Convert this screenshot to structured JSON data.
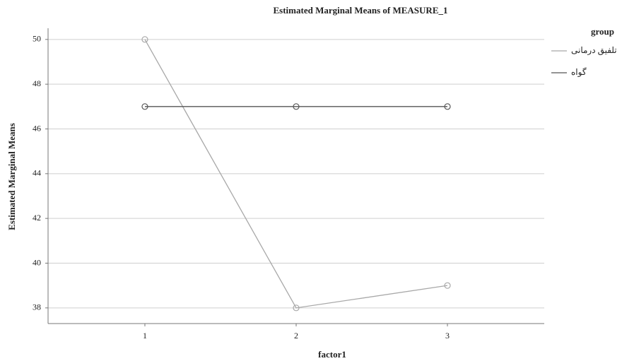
{
  "chart_data": {
    "type": "line",
    "title": "Estimated Marginal Means of MEASURE_1",
    "x_label": "factor1",
    "y_label": "Estimated Marginal Means",
    "legend_title": "group",
    "x": [
      1,
      2,
      3
    ],
    "xlim": [
      0.36,
      3.64
    ],
    "xticks": [
      1,
      2,
      3
    ],
    "ylim": [
      37.3,
      50.5
    ],
    "yticks": [
      38,
      40,
      42,
      44,
      46,
      48,
      50
    ],
    "grid": true,
    "series": [
      {
        "name": "تلفیق درمانی",
        "color": "#a8a8a8",
        "values": [
          50,
          38,
          39
        ]
      },
      {
        "name": "گواه",
        "color": "#555555",
        "values": [
          47,
          47,
          47
        ]
      }
    ]
  }
}
